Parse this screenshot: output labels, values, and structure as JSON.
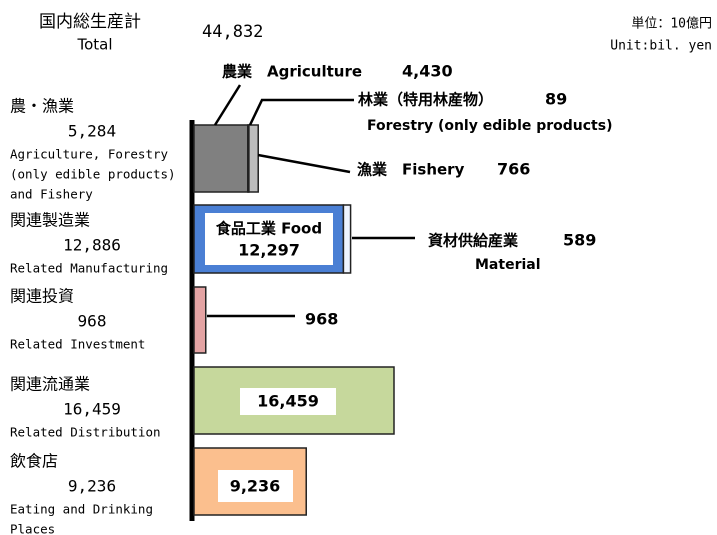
{
  "chart_data": {
    "type": "stacked-bar",
    "title": "国内総生産計",
    "subtitle": "Total",
    "total_label": "44,832",
    "unit": [
      "単位：10億円",
      "Unit:bil. yen"
    ],
    "groups": [
      {
        "name": "農・漁業",
        "value_label": "5,284",
        "name_en": [
          "Agriculture, Forestry",
          "(only edible products)",
          "and Fishery"
        ],
        "segments": [
          {
            "name": "農業　Agriculture",
            "value": 4430,
            "value_label": "4,430",
            "color": "#808080"
          },
          {
            "name": "林業（特用林産物）",
            "name_en": "Forestry (only edible products)",
            "value": 89,
            "color": "#222222"
          },
          {
            "name": "漁業　Fishery",
            "value": 766,
            "color": "#bdbdbd"
          }
        ]
      },
      {
        "name": "関連製造業",
        "value_label": "12,886",
        "name_en": [
          "Related Manufacturing"
        ],
        "segments": [
          {
            "name": "食品工業 Food",
            "value": 12297,
            "value_label": "12,297",
            "color": "#4a7fd4"
          },
          {
            "name": "資材供給産業",
            "name_en": "Material",
            "value": 589,
            "color": "#eef4ff"
          }
        ]
      },
      {
        "name": "関連投資",
        "value_label": "968",
        "name_en": [
          "Related Investment"
        ],
        "segments": [
          {
            "value": 968,
            "color": "#e3a3a3"
          }
        ]
      },
      {
        "name": "関連流通業",
        "value_label": "16,459",
        "name_en": [
          "Related Distribution"
        ],
        "segments": [
          {
            "value": 16459,
            "value_label": "16,459",
            "color": "#c6d89c"
          }
        ]
      },
      {
        "name": "飲食店",
        "value_label": "9,236",
        "name_en": [
          "Eating and Drinking",
          "Places"
        ],
        "segments": [
          {
            "value": 9236,
            "value_label": "9,236",
            "color": "#fbbf8e"
          }
        ]
      }
    ]
  }
}
